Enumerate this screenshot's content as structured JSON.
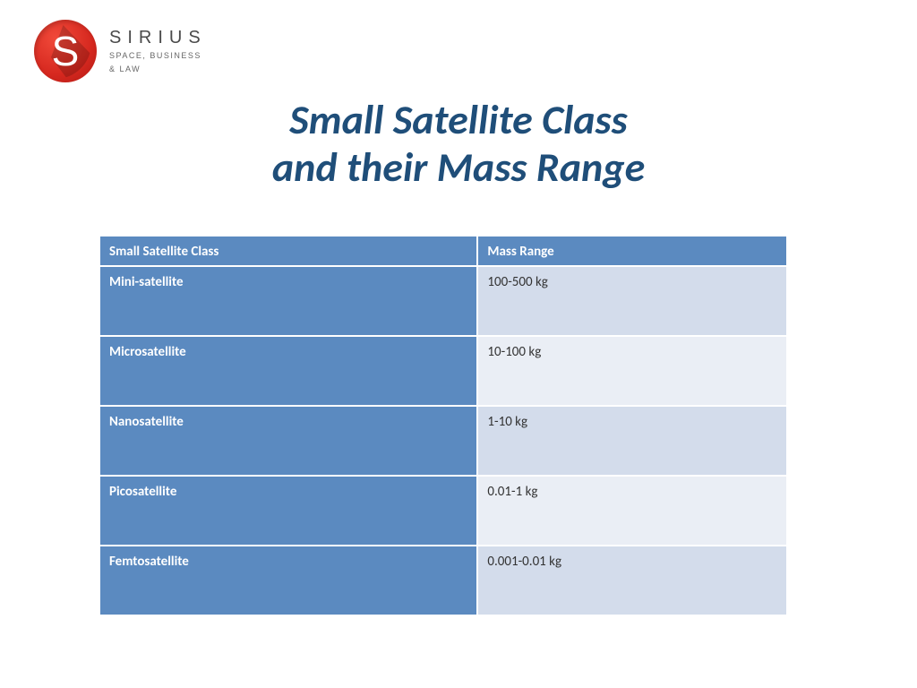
{
  "logo": {
    "letter": "S",
    "brand": "SIRIUS",
    "tagline1": "SPACE, BUSINESS",
    "tagline2": "& LAW",
    "badge_color": "#d6281f",
    "text_color": "#4a4a4a"
  },
  "title": {
    "line1": "Small Satellite Class",
    "line2": "and their Mass Range",
    "color": "#1f4e79",
    "fontsize": 46,
    "italic": true,
    "bold": true
  },
  "table": {
    "type": "table",
    "header_bg": "#5b8ac0",
    "header_fg": "#ffffff",
    "class_col_bg": "#5b8ac0",
    "class_col_fg": "#ffffff",
    "mass_col_bg_odd": "#d3dceb",
    "mass_col_bg_even": "#eaeef5",
    "mass_col_fg": "#333333",
    "border_color": "#ffffff",
    "columns": [
      "Small Satellite Class",
      "Mass Range"
    ],
    "rows": [
      {
        "class": "Mini-satellite",
        "mass": "100-500 kg"
      },
      {
        "class": "Microsatellite",
        "mass": "10-100 kg"
      },
      {
        "class": "Nanosatellite",
        "mass": "1-10 kg"
      },
      {
        "class": "Picosatellite",
        "mass": "0.01-1 kg"
      },
      {
        "class": "Femtosatellite",
        "mass": "0.001-0.01 kg"
      }
    ]
  }
}
